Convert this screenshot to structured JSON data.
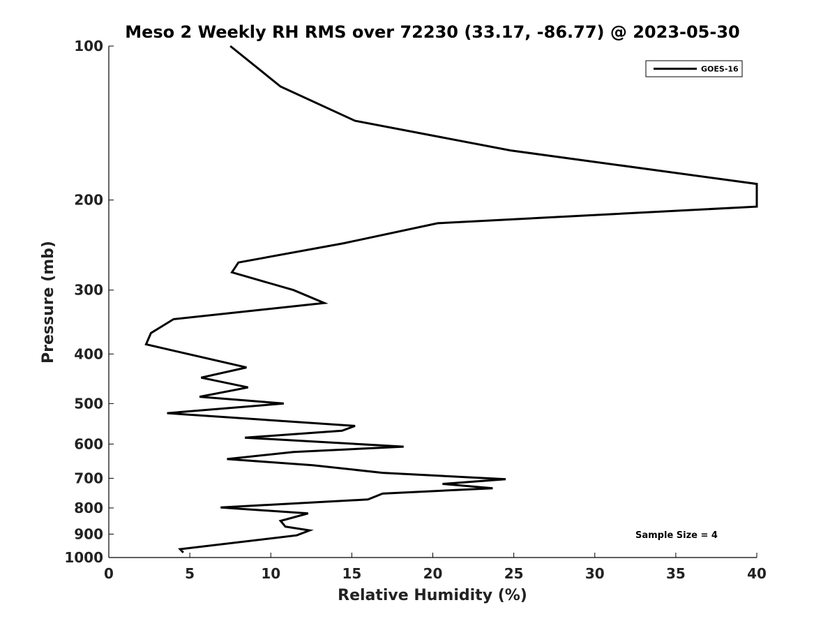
{
  "chart_data": {
    "type": "line",
    "title": "Meso 2 Weekly RH RMS over 72230 (33.17, -86.77) @ 2023-05-30",
    "xlabel": "Relative Humidity (%)",
    "ylabel": "Pressure (mb)",
    "xlim": [
      0,
      40
    ],
    "ylim": [
      100,
      1000
    ],
    "y_scale": "log",
    "y_reversed": true,
    "x_ticks": [
      0,
      5,
      10,
      15,
      20,
      25,
      30,
      35,
      40
    ],
    "y_ticks": [
      100,
      200,
      300,
      400,
      500,
      600,
      700,
      800,
      900,
      1000
    ],
    "x_tick_labels": [
      "0",
      "5",
      "10",
      "15",
      "20",
      "25",
      "30",
      "35",
      "40"
    ],
    "y_tick_labels": [
      "100",
      "200",
      "300",
      "400",
      "500",
      "600",
      "700",
      "800",
      "900",
      "1000"
    ],
    "legend_position": "top-right",
    "grid": false,
    "annotation": "Sample Size = 4",
    "series": [
      {
        "name": "GOES-16",
        "color": "#000000",
        "points": [
          [
            7.5,
            100
          ],
          [
            10.6,
            120
          ],
          [
            15.2,
            140
          ],
          [
            24.8,
            160
          ],
          [
            40,
            186
          ],
          [
            40,
            206
          ],
          [
            20.3,
            222
          ],
          [
            14.5,
            243
          ],
          [
            8.0,
            265
          ],
          [
            7.6,
            277
          ],
          [
            11.4,
            300
          ],
          [
            13.3,
            318
          ],
          [
            4.0,
            342
          ],
          [
            2.6,
            364
          ],
          [
            2.3,
            383
          ],
          [
            8.5,
            425
          ],
          [
            5.7,
            445
          ],
          [
            8.6,
            465
          ],
          [
            5.6,
            485
          ],
          [
            10.8,
            500
          ],
          [
            3.6,
            522
          ],
          [
            15.2,
            553
          ],
          [
            14.4,
            565
          ],
          [
            8.4,
            583
          ],
          [
            18.2,
            607
          ],
          [
            11.4,
            622
          ],
          [
            7.3,
            642
          ],
          [
            12.6,
            660
          ],
          [
            16.9,
            683
          ],
          [
            24.5,
            703
          ],
          [
            20.6,
            718
          ],
          [
            23.7,
            732
          ],
          [
            16.9,
            750
          ],
          [
            16.0,
            770
          ],
          [
            6.9,
            798
          ],
          [
            12.3,
            820
          ],
          [
            10.6,
            848
          ],
          [
            10.9,
            870
          ],
          [
            12.4,
            885
          ],
          [
            11.6,
            905
          ],
          [
            4.4,
            963
          ],
          [
            4.6,
            978
          ]
        ]
      }
    ]
  }
}
